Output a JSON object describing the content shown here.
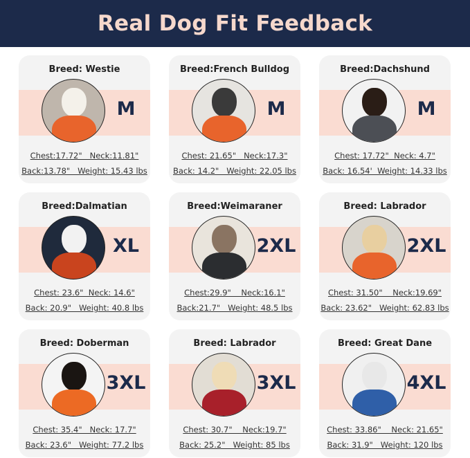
{
  "header": {
    "title": "Real Dog Fit Feedback"
  },
  "colors": {
    "header_bg": "#1c2a4a",
    "title": "#f6d8cc",
    "band": "#fadcd2",
    "size_text": "#1c2a4a"
  },
  "cards": [
    {
      "breed": "Breed: Westie",
      "size": "M",
      "line1": "Chest:17.72\"   Neck:11.81\"",
      "line2": "Back:13.78\"   Weight: 15.43 lbs",
      "fur": "#f4f1ea",
      "sweater": "#e8642c",
      "bg": "#bfb6ac"
    },
    {
      "breed": "Breed:French Bulldog",
      "size": "M",
      "line1": "Chest: 21.65\"   Neck:17.3\"",
      "line2": "Back: 14.2\"   Weight: 22.05 lbs",
      "fur": "#3a3a3a",
      "sweater": "#e8642c",
      "bg": "#e6e4e0"
    },
    {
      "breed": "Breed:Dachshund",
      "size": "M",
      "line1": "Chest: 17.72\"  Neck: 4.7\"",
      "line2": "Back: 16.54'  Weight: 14.33 lbs",
      "fur": "#2a1d16",
      "sweater": "#4c4f55",
      "bg": "#f2f2f2"
    },
    {
      "breed": "Breed:Dalmatian",
      "size": "XL",
      "line1": "Chest: 23.6\"  Neck: 14.6\"",
      "line2": "Back: 20.9\"   Weight: 40.8 lbs",
      "fur": "#f2f2f2",
      "sweater": "#c9441e",
      "bg": "#1f2a3c"
    },
    {
      "breed": "Breed:Weimaraner",
      "size": "2XL",
      "line1": "Chest:29.9\"    Neck:16.1\"",
      "line2": "Back:21.7\"   Weight: 48.5 lbs",
      "fur": "#8a7462",
      "sweater": "#2b2d30",
      "bg": "#e9e4dc"
    },
    {
      "breed": "Breed: Labrador",
      "size": "2XL",
      "line1": "Chest: 31.50\"    Neck:19.69\"",
      "line2": "Back: 23.62\"   Weight: 62.83 lbs",
      "fur": "#e8cfa0",
      "sweater": "#e8642c",
      "bg": "#d8d4cc"
    },
    {
      "breed": "Breed: Doberman",
      "size": "3XL",
      "line1": "Chest: 35.4\"   Neck: 17.7\"",
      "line2": "Back: 23.6\"   Weight: 77.2 lbs",
      "fur": "#1a1512",
      "sweater": "#ec6a24",
      "bg": "#f4f4f4"
    },
    {
      "breed": "Breed: Labrador",
      "size": "3XL",
      "line1": "Chest: 30.7\"    Neck:19.7\"",
      "line2": "Back: 25.2\"   Weight: 85 lbs",
      "fur": "#efdcb6",
      "sweater": "#a8202a",
      "bg": "#e2ddd4"
    },
    {
      "breed": "Breed: Great Dane",
      "size": "4XL",
      "line1": "Chest: 33.86\"    Neck: 21.65\"",
      "line2": "Back: 31.9\"   Weight: 120 lbs",
      "fur": "#e8e8e8",
      "sweater": "#2f5fa8",
      "bg": "#f0f0f0"
    }
  ]
}
